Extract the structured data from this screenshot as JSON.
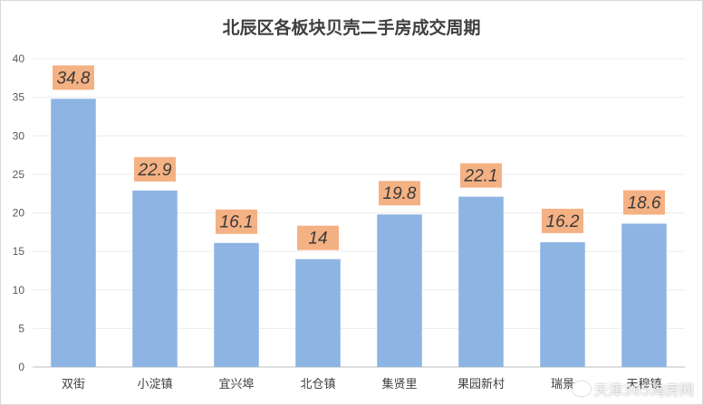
{
  "chart_data": {
    "type": "bar",
    "title": "北辰区各板块贝壳二手房成交周期",
    "categories": [
      "双街",
      "小淀镇",
      "宜兴埠",
      "北仓镇",
      "集贤里",
      "果园新村",
      "瑞景",
      "天穆镇"
    ],
    "values": [
      34.8,
      22.9,
      16.1,
      14,
      19.8,
      22.1,
      16.2,
      18.6
    ],
    "data_labels": [
      "34.8",
      "22.9",
      "16.1",
      "14",
      "19.8",
      "22.1",
      "16.2",
      "18.6"
    ],
    "ylim": [
      0,
      40
    ],
    "yticks": [
      0,
      5,
      10,
      15,
      20,
      25,
      30,
      35,
      40
    ],
    "xlabel": "",
    "ylabel": "",
    "grid": true,
    "legend": "none",
    "colors": {
      "bar": "#8db4e2",
      "label_box": "#f4b183",
      "grid": "#ececec",
      "axis": "#bfbfbf"
    }
  },
  "watermark": "天津365淘房网"
}
